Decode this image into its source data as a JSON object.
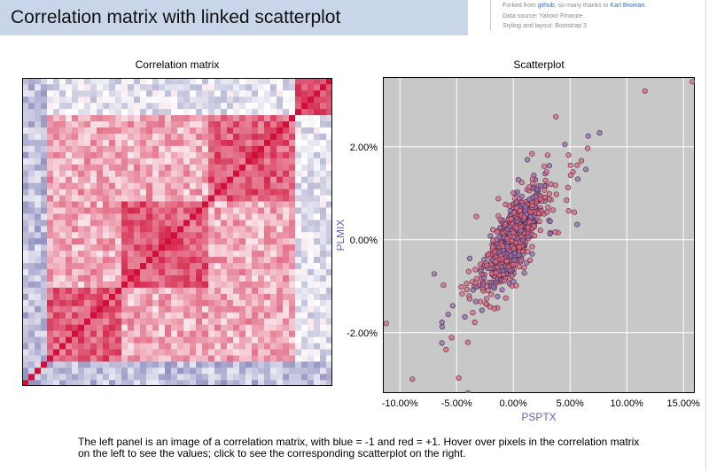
{
  "header": {
    "title": "Correlation matrix with linked scatterplot",
    "meta": {
      "forked_prefix": "Forked from ",
      "github_link": "github",
      "forked_mid": ", so many thanks to ",
      "author_link": "Karl Broman",
      "forked_suffix": ".",
      "data_source": "Data source: Yahoo! Finance",
      "styling": "Styling and layout: Bootstrap 3"
    }
  },
  "panels": {
    "matrix_title": "Correlation matrix",
    "scatter_title": "Scatterplot"
  },
  "colors": {
    "title_bar": "#c9d6ea",
    "negative": "#3b3b8f",
    "positive": "#d0103a",
    "scatter_bg": "#c8c8c8",
    "point_fill_a": "#d96b8a",
    "point_fill_b": "#8a72b8"
  },
  "chart_data": [
    {
      "type": "heatmap",
      "title": "Correlation matrix",
      "size": 50,
      "value_range": [
        -1,
        1
      ],
      "color_scale": "blue = -1, white = 0, red = +1",
      "diagonal": 1
    },
    {
      "type": "scatter",
      "title": "Scatterplot",
      "xlabel": "PSPTX",
      "ylabel": "PLMIX",
      "x_ticks": [
        "-10.00%",
        "-5.00%",
        "0.00%",
        "5.00%",
        "10.00%",
        "15.00%"
      ],
      "y_ticks": [
        "2.00%",
        "0.00%",
        "-2.00%"
      ],
      "xlim": [
        -11.5,
        16
      ],
      "ylim": [
        -3.3,
        3.5
      ],
      "grid": true,
      "outliers": [
        [
          15.8,
          3.4
        ],
        [
          11.6,
          3.2
        ],
        [
          7.6,
          2.3
        ],
        [
          -11.2,
          -1.8
        ],
        [
          -8.9,
          -3.0
        ],
        [
          -4.0,
          -3.3
        ]
      ]
    }
  ],
  "caption": "The left panel is an image of a correlation matrix, with blue = -1 and red = +1. Hover over pixels in the correlation matrix on the left to see the values; click to see the corresponding scatterplot on the right."
}
